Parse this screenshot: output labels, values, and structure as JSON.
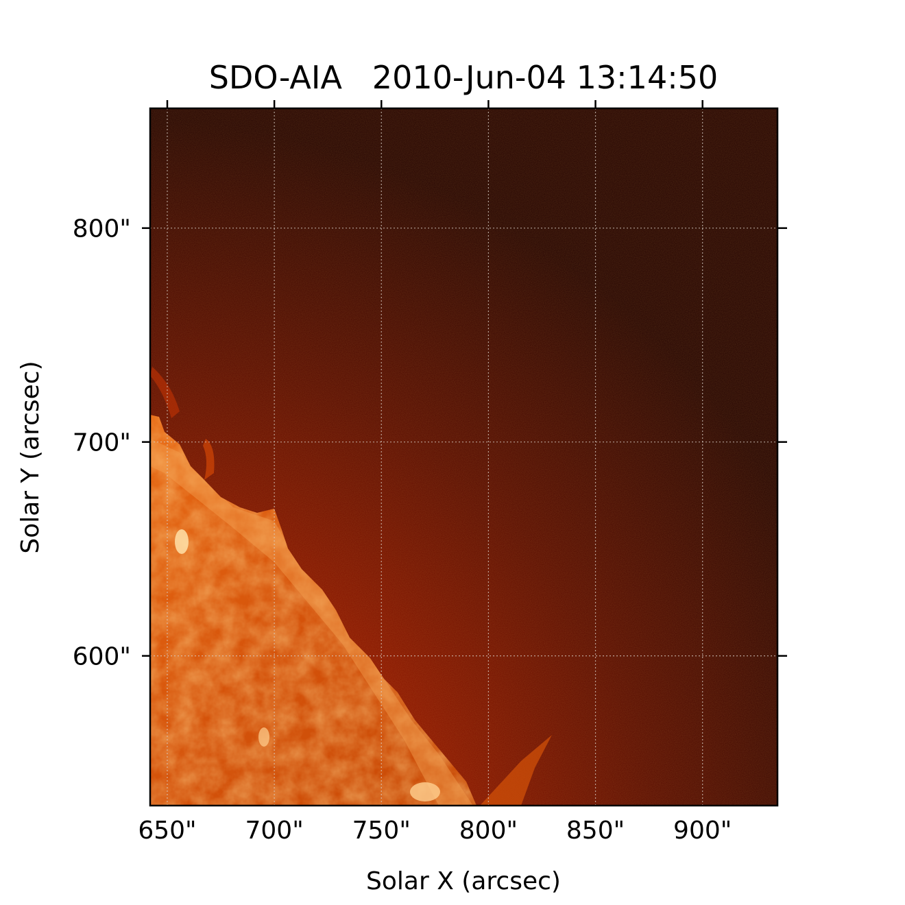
{
  "title": "SDO-AIA   2010-Jun-04 13:14:50",
  "xlabel": "Solar X (arcsec)",
  "ylabel": "Solar Y (arcsec)",
  "x_ticks": [
    {
      "value": 650,
      "label": "650\""
    },
    {
      "value": 700,
      "label": "700\""
    },
    {
      "value": 750,
      "label": "750\""
    },
    {
      "value": 800,
      "label": "800\""
    },
    {
      "value": 850,
      "label": "850\""
    },
    {
      "value": 900,
      "label": "900\""
    }
  ],
  "y_ticks": [
    {
      "value": 600,
      "label": "600\""
    },
    {
      "value": 700,
      "label": "700\""
    },
    {
      "value": 800,
      "label": "800\""
    }
  ],
  "x_range": [
    642,
    935
  ],
  "y_range": [
    530,
    856
  ],
  "grid": true,
  "colors": {
    "background_sky": "#2a0703",
    "corona": "#8c1200",
    "disk": "#d9580a",
    "bright": "#ffb060",
    "grid": "#d8d0c8"
  }
}
